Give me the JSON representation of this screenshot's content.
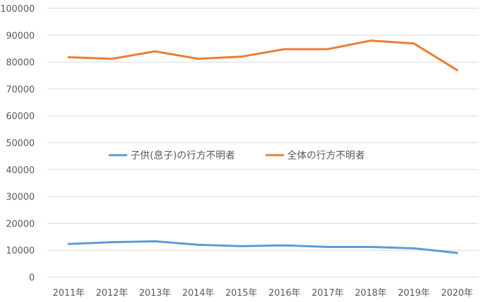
{
  "chart_data": {
    "type": "line",
    "categories": [
      "2011年",
      "2012年",
      "2013年",
      "2014年",
      "2015年",
      "2016年",
      "2017年",
      "2018年",
      "2019年",
      "2020年"
    ],
    "series": [
      {
        "name": "子供(息子)の行方不明者",
        "color": "#5b9bd5",
        "values": [
          12300,
          13000,
          13300,
          12000,
          11500,
          11800,
          11200,
          11200,
          10700,
          9000
        ]
      },
      {
        "name": "全体の行方不明者",
        "color": "#ed7d31",
        "values": [
          81800,
          81200,
          84000,
          81200,
          82000,
          84800,
          84800,
          88000,
          86900,
          77000
        ]
      }
    ],
    "ylim": [
      0,
      100000
    ],
    "yticks": [
      "0",
      "10000",
      "20000",
      "30000",
      "40000",
      "50000",
      "60000",
      "70000",
      "80000",
      "90000",
      "100000"
    ],
    "grid": true,
    "legend_position": "center"
  }
}
